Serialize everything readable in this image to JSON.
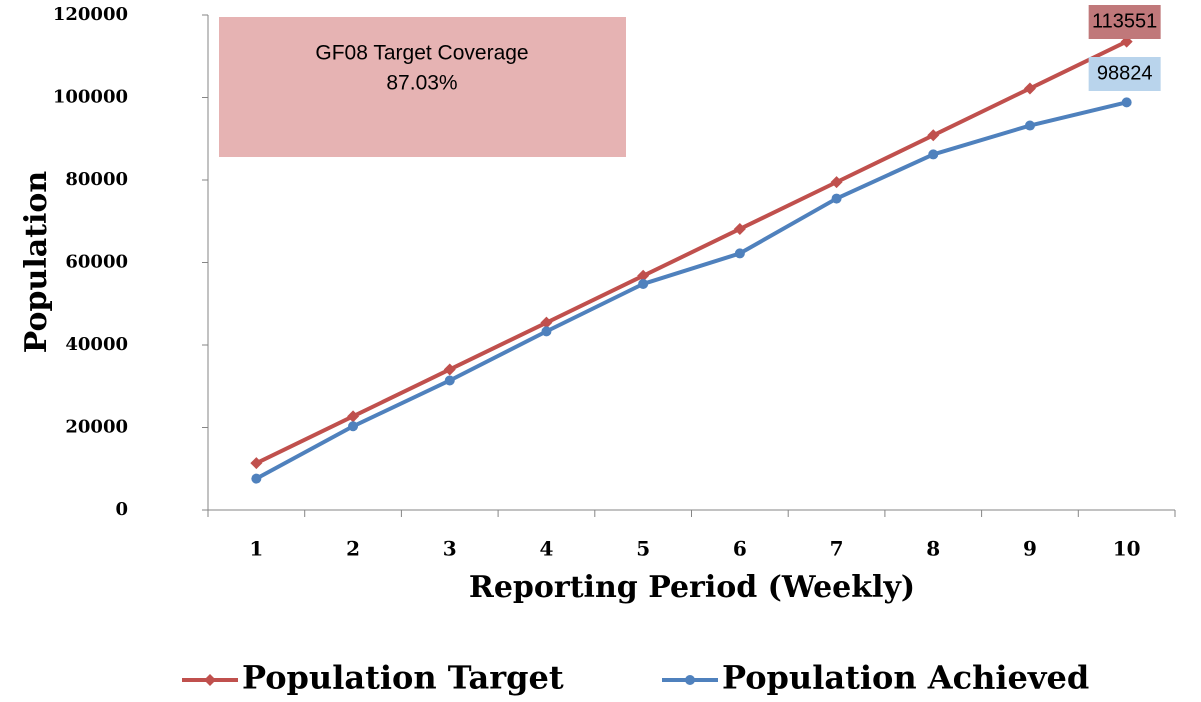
{
  "chart_data": {
    "type": "line",
    "annotation": [
      "GF08 Target Coverage",
      "87.03%"
    ],
    "x_label": "Reporting Period (Weekly)",
    "y_label": "Population",
    "categories": [
      "1",
      "2",
      "3",
      "4",
      "5",
      "6",
      "7",
      "8",
      "9",
      "10"
    ],
    "series": [
      {
        "name": "Population Target",
        "color": "#c0504d",
        "marker": "diamond",
        "values": [
          11355,
          22710,
          34065,
          45420,
          56775,
          68130,
          79485,
          90840,
          102196,
          113551
        ],
        "value_labels": [
          null,
          null,
          null,
          null,
          null,
          null,
          null,
          null,
          null,
          "113551"
        ],
        "label_color": "#c0787a"
      },
      {
        "name": "Population Achieved",
        "color": "#4f81bd",
        "marker": "circle",
        "values": [
          7600,
          20300,
          31400,
          43300,
          54800,
          62200,
          75500,
          86200,
          93200,
          98824
        ],
        "value_labels": [
          null,
          null,
          null,
          null,
          null,
          null,
          null,
          null,
          null,
          "98824"
        ],
        "label_color": "#b9d4ec"
      }
    ],
    "ylim": [
      0,
      120000
    ],
    "yticks": [
      0,
      20000,
      40000,
      60000,
      80000,
      100000,
      120000
    ],
    "legend": "bottom"
  }
}
